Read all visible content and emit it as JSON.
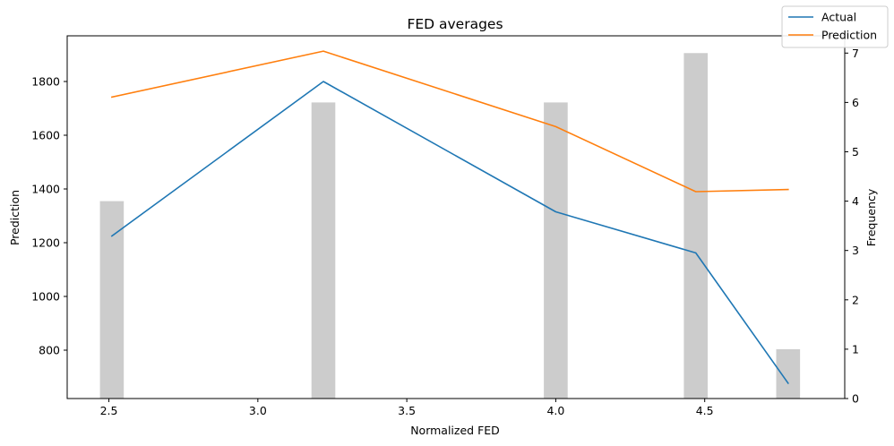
{
  "chart_data": {
    "type": "line",
    "title": "FED averages",
    "xlabel": "Normalized FED",
    "ylabel": "Prediction",
    "y2label": "Frequency",
    "xlim": [
      2.36,
      4.97
    ],
    "ylim": [
      620,
      1970
    ],
    "y2lim": [
      0,
      7.35
    ],
    "xticks": [
      2.5,
      3.0,
      3.5,
      4.0,
      4.5
    ],
    "xtick_labels": [
      "2.5",
      "3.0",
      "3.5",
      "4.0",
      "4.5"
    ],
    "yticks": [
      800,
      1000,
      1200,
      1400,
      1600,
      1800
    ],
    "ytick_labels": [
      "800",
      "1000",
      "1200",
      "1400",
      "1600",
      "1800"
    ],
    "y2ticks": [
      0,
      1,
      2,
      3,
      4,
      5,
      6,
      7
    ],
    "y2tick_labels": [
      "0",
      "1",
      "2",
      "3",
      "4",
      "5",
      "6",
      "7"
    ],
    "x": [
      2.51,
      3.22,
      4.0,
      4.47,
      4.78
    ],
    "series": [
      {
        "name": "Actual",
        "color": "#1f77b4",
        "values": [
          1225,
          1800,
          1315,
          1162,
          677
        ]
      },
      {
        "name": "Prediction",
        "color": "#ff7f0e",
        "values": [
          1742,
          1913,
          1632,
          1390,
          1398
        ]
      }
    ],
    "histogram": {
      "color": "#cccccc",
      "bar_width": 0.08,
      "frequencies": [
        4,
        6,
        6,
        7,
        1
      ]
    },
    "legend": {
      "placement": "top-right"
    },
    "grid": false
  }
}
